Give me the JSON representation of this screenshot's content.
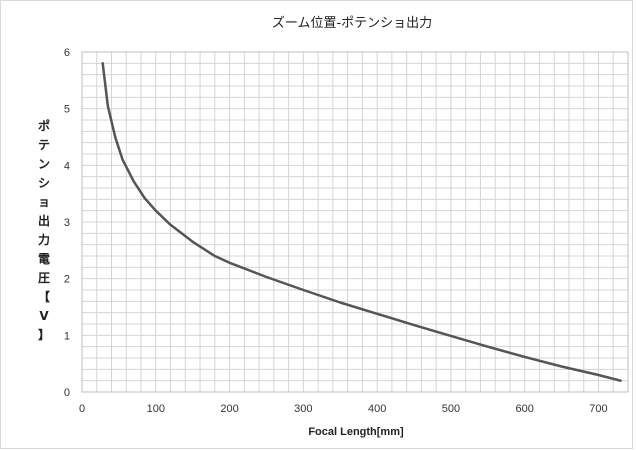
{
  "chart_data": {
    "type": "line",
    "title": "ズーム位置-ポテンショ出力",
    "xlabel": "Focal Length[mm]",
    "ylabel": "ポテンショ出力電圧【V】",
    "xlim": [
      0,
      740
    ],
    "ylim": [
      0,
      6
    ],
    "x_major_ticks": [
      0,
      100,
      200,
      300,
      400,
      500,
      600,
      700
    ],
    "y_major_ticks": [
      0,
      1,
      2,
      3,
      4,
      5,
      6
    ],
    "x_minor_step": 20,
    "y_minor_step": 0.2,
    "grid": true,
    "legend": "none",
    "colors": {
      "line": "#555555",
      "grid": "#d4d4d4",
      "border": "#bfbfbf"
    },
    "series": [
      {
        "x": [
          28,
          35,
          45,
          55,
          70,
          85,
          100,
          120,
          150,
          180,
          200,
          250,
          300,
          350,
          400,
          450,
          500,
          550,
          600,
          650,
          700,
          730
        ],
        "y": [
          5.8,
          5.05,
          4.5,
          4.1,
          3.72,
          3.42,
          3.2,
          2.95,
          2.65,
          2.4,
          2.28,
          2.03,
          1.8,
          1.58,
          1.38,
          1.18,
          0.99,
          0.8,
          0.62,
          0.45,
          0.3,
          0.2
        ]
      }
    ]
  }
}
